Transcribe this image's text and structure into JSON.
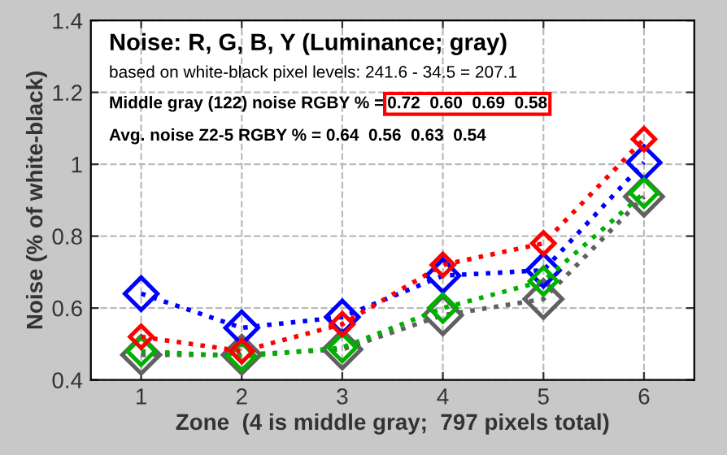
{
  "chart_data": {
    "type": "line",
    "title": "Noise: R, G, B, Y (Luminance; gray)",
    "subtitle": "based on white-black pixel levels: 241.6 - 34.5 = 207.1",
    "annotations": [
      "Middle gray (122) noise RGBY % =",
      "0.72  0.60  0.69  0.58",
      "Avg. noise Z2-5 RGBY % = 0.64  0.56  0.63  0.54"
    ],
    "xlabel": "Zone  (4 is middle gray;  797 pixels total)",
    "ylabel": "Noise (% of white-black)",
    "x": [
      1,
      2,
      3,
      4,
      5,
      6
    ],
    "series": [
      {
        "color": "#ff0000",
        "values": [
          0.52,
          0.48,
          0.555,
          0.72,
          0.78,
          1.07
        ]
      },
      {
        "color": "#00b000",
        "values": [
          0.48,
          0.465,
          0.49,
          0.6,
          0.675,
          0.92
        ]
      },
      {
        "color": "#0000ff",
        "values": [
          0.64,
          0.545,
          0.575,
          0.69,
          0.705,
          1.005
        ]
      },
      {
        "color": "#606060",
        "values": [
          0.47,
          0.47,
          0.485,
          0.58,
          0.625,
          0.91
        ]
      }
    ],
    "xlim": [
      0.5,
      6.5
    ],
    "xticks": [
      1,
      2,
      3,
      4,
      5,
      6
    ],
    "ylim": [
      0.4,
      1.4
    ],
    "yticks": [
      0.4,
      0.6,
      0.8,
      1,
      1.2,
      1.4
    ],
    "grid": true,
    "marker": "diamond",
    "line_style": "dotted",
    "legend": false
  }
}
